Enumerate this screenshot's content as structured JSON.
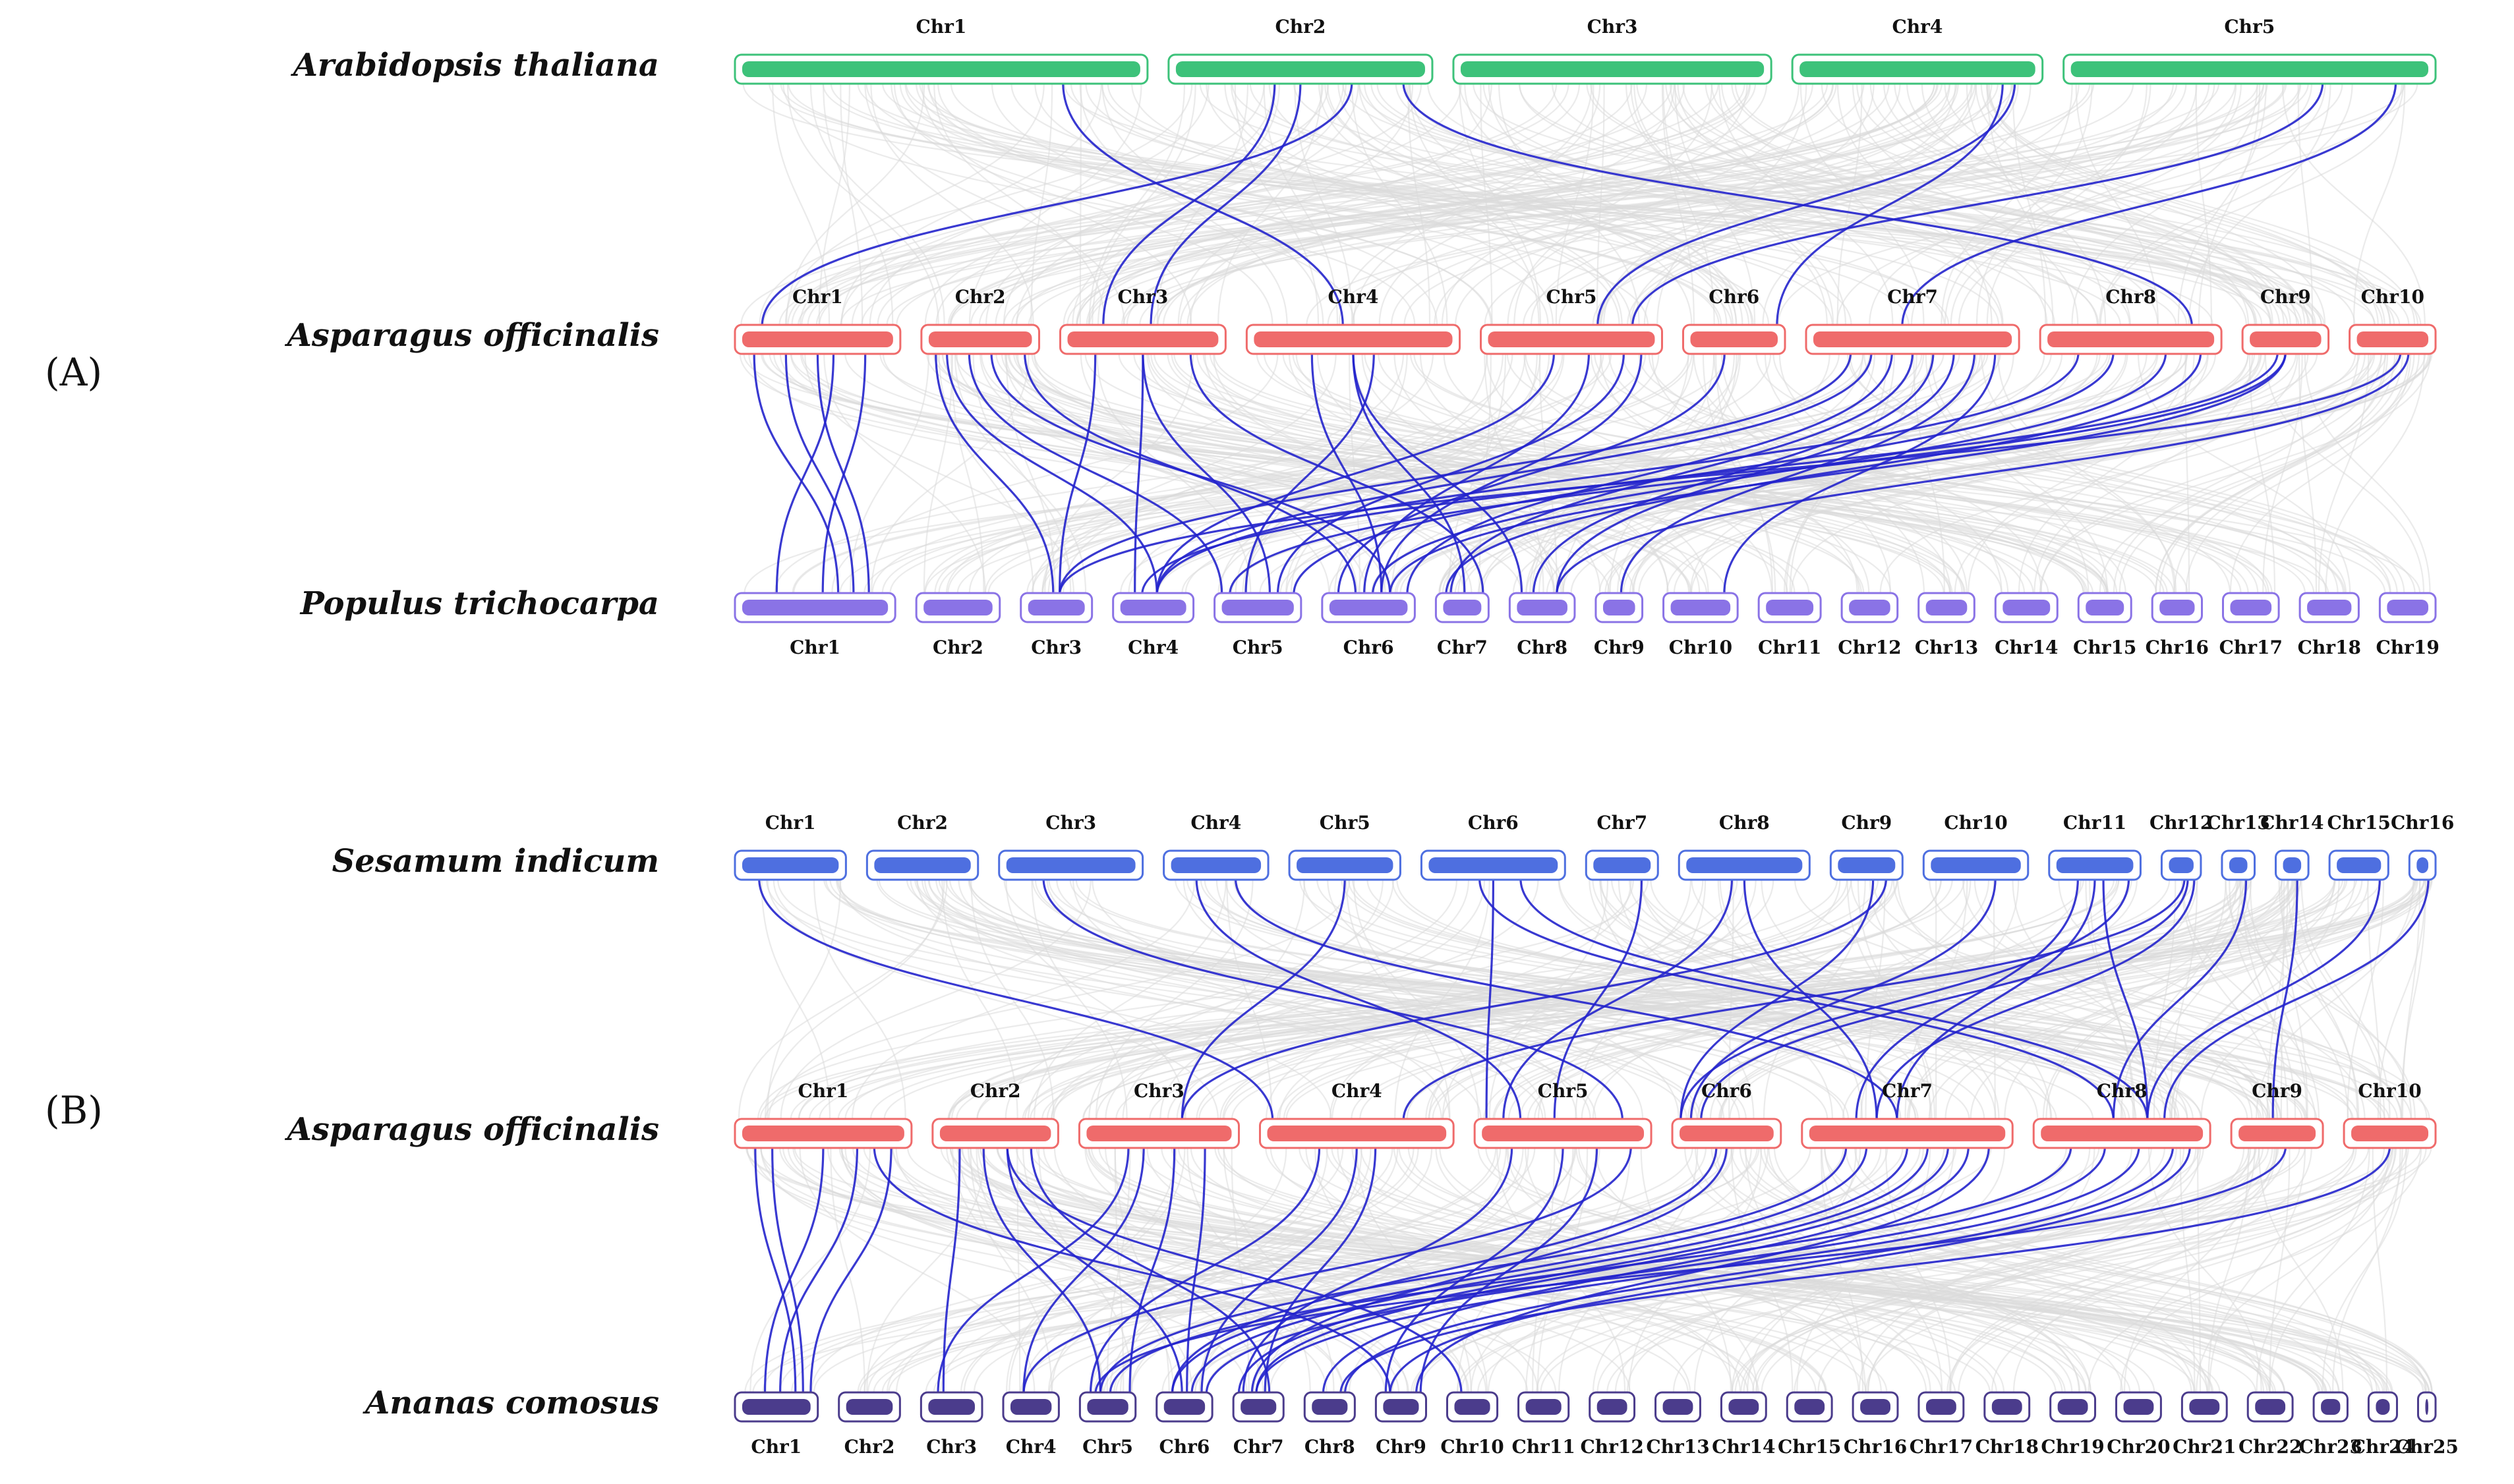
{
  "colors": {
    "arabidopsis": "#3dc27a",
    "asparagus": "#ef6b6b",
    "populus": "#8a73e6",
    "sesamum": "#4e6fe0",
    "ananas": "#4b3c8c",
    "syntenic": "#2424cc",
    "background": "#dadada"
  },
  "panels": [
    {
      "label": "(A)",
      "tracks": [
        {
          "species": "Arabidopsis thaliana",
          "color_key": "arabidopsis",
          "label_pos": "above",
          "chromosomes": [
            "Chr1",
            "Chr2",
            "Chr3",
            "Chr4",
            "Chr5"
          ],
          "sizes": [
            30,
            19,
            23,
            18,
            27
          ]
        },
        {
          "species": "Asparagus officinalis",
          "color_key": "asparagus",
          "label_pos": "above",
          "chromosomes": [
            "Chr1",
            "Chr2",
            "Chr3",
            "Chr4",
            "Chr5",
            "Chr6",
            "Chr7",
            "Chr8",
            "Chr9",
            "Chr10"
          ],
          "sizes": [
            10,
            7,
            10,
            13,
            11,
            6,
            13,
            11,
            5,
            5
          ]
        },
        {
          "species": "Populus trichocarpa",
          "color_key": "populus",
          "label_pos": "below",
          "chromosomes": [
            "Chr1",
            "Chr2",
            "Chr3",
            "Chr4",
            "Chr5",
            "Chr6",
            "Chr7",
            "Chr8",
            "Chr9",
            "Chr10",
            "Chr11",
            "Chr12",
            "Chr13",
            "Chr14",
            "Chr15",
            "Chr16",
            "Chr17",
            "Chr18",
            "Chr19"
          ],
          "sizes": [
            50,
            25,
            21,
            24,
            26,
            28,
            15,
            19,
            13,
            22,
            18,
            16,
            16,
            18,
            15,
            14,
            16,
            17,
            16
          ]
        }
      ],
      "links_upper": [
        [
          1,
          1,
          0,
          0.7
        ],
        [
          1,
          2,
          2,
          0.4
        ],
        [
          1,
          8,
          7,
          0.9
        ],
        [
          3,
          6,
          4,
          0.9
        ],
        [
          1,
          5,
          2,
          0.5
        ],
        [
          4,
          4,
          6,
          0.9
        ],
        [
          4,
          8,
          4,
          0.7
        ],
        [
          3,
          9,
          5,
          0.85
        ],
        [
          0,
          4,
          3,
          0.8
        ]
      ],
      "links_lower": [
        [
          0,
          16,
          0,
          0.1
        ],
        [
          0,
          17,
          0,
          0.3
        ],
        [
          0,
          18,
          0,
          0.5
        ],
        [
          0,
          2,
          0,
          0.6
        ],
        [
          0,
          5,
          0,
          0.8
        ],
        [
          1,
          14,
          2,
          0.1
        ],
        [
          1,
          15,
          3,
          0.2
        ],
        [
          1,
          10,
          4,
          0.4
        ],
        [
          1,
          17,
          5,
          0.6
        ],
        [
          1,
          3,
          5,
          0.9
        ],
        [
          2,
          5,
          2,
          0.2
        ],
        [
          2,
          12,
          3,
          0.5
        ],
        [
          2,
          16,
          4,
          0.5
        ],
        [
          2,
          9,
          6,
          0.8
        ],
        [
          3,
          16,
          5,
          0.3
        ],
        [
          3,
          5,
          6,
          0.5
        ],
        [
          3,
          1,
          7,
          0.5
        ],
        [
          4,
          5,
          3,
          0.4
        ],
        [
          4,
          4,
          5,
          0.6
        ],
        [
          4,
          17,
          4,
          0.8
        ],
        [
          4,
          6,
          5,
          0.9
        ],
        [
          5,
          11,
          5,
          0.4
        ],
        [
          6,
          5,
          2,
          0.2
        ],
        [
          6,
          5,
          3,
          0.3
        ],
        [
          6,
          9,
          5,
          0.4
        ],
        [
          6,
          12,
          6,
          0.5
        ],
        [
          6,
          3,
          7,
          0.6
        ],
        [
          6,
          17,
          7,
          0.7
        ],
        [
          6,
          5,
          8,
          0.8
        ],
        [
          6,
          18,
          9,
          0.9
        ],
        [
          7,
          5,
          3,
          0.2
        ],
        [
          7,
          9,
          4,
          0.4
        ],
        [
          7,
          15,
          5,
          0.7
        ],
        [
          7,
          11,
          6,
          0.9
        ],
        [
          8,
          13,
          3,
          0.4
        ],
        [
          8,
          1,
          4,
          0.5
        ],
        [
          8,
          17,
          5,
          0.5
        ],
        [
          9,
          15,
          2,
          0.6
        ],
        [
          9,
          17,
          7,
          0.7
        ],
        [
          3,
          13,
          4,
          0.6
        ]
      ]
    },
    {
      "label": "(B)",
      "tracks": [
        {
          "species": "Sesamum indicum",
          "color_key": "sesamum",
          "label_pos": "above",
          "chromosomes": [
            "Chr1",
            "Chr2",
            "Chr3",
            "Chr4",
            "Chr5",
            "Chr6",
            "Chr7",
            "Chr8",
            "Chr9",
            "Chr10",
            "Chr11",
            "Chr12",
            "Chr13",
            "Chr14",
            "Chr15",
            "Chr16"
          ],
          "sizes": [
            16,
            16,
            21,
            15,
            16,
            21,
            10,
            19,
            10,
            15,
            13,
            5,
            4,
            4,
            8,
            3
          ]
        },
        {
          "species": "Asparagus officinalis",
          "color_key": "asparagus",
          "label_pos": "above",
          "chromosomes": [
            "Chr1",
            "Chr2",
            "Chr3",
            "Chr4",
            "Chr5",
            "Chr6",
            "Chr7",
            "Chr8",
            "Chr9",
            "Chr10"
          ],
          "sizes": [
            10,
            7,
            9,
            11,
            10,
            6,
            12,
            10,
            5,
            5
          ]
        },
        {
          "species": "Ananas comosus",
          "color_key": "ananas",
          "label_pos": "below",
          "chromosomes": [
            "Chr1",
            "Chr2",
            "Chr3",
            "Chr4",
            "Chr5",
            "Chr6",
            "Chr7",
            "Chr8",
            "Chr9",
            "Chr10",
            "Chr11",
            "Chr12",
            "Chr13",
            "Chr14",
            "Chr15",
            "Chr16",
            "Chr17",
            "Chr18",
            "Chr19",
            "Chr20",
            "Chr21",
            "Chr22",
            "Chr23",
            "Chr24",
            "Chr25"
          ],
          "sizes": [
            14,
            10,
            10,
            9,
            9,
            9,
            8,
            8,
            8,
            8,
            8,
            7,
            7,
            7,
            7,
            7,
            7,
            7,
            7,
            7,
            7,
            7,
            5,
            4,
            2
          ]
        }
      ],
      "links_upper": [
        [
          0,
          0,
          3,
          0.2
        ],
        [
          3,
          2,
          4,
          0.3
        ],
        [
          3,
          4,
          6,
          0.7
        ],
        [
          4,
          6,
          2,
          0.5
        ],
        [
          5,
          0,
          4,
          0.5
        ],
        [
          5,
          4,
          7,
          0.4
        ],
        [
          5,
          6,
          7,
          0.7
        ],
        [
          6,
          4,
          4,
          0.8
        ],
        [
          7,
          1,
          4,
          0.4
        ],
        [
          7,
          3,
          6,
          0.5
        ],
        [
          8,
          0,
          5,
          0.6
        ],
        [
          8,
          6,
          2,
          0.8
        ],
        [
          9,
          1,
          5,
          0.7
        ],
        [
          10,
          0,
          5,
          0.9
        ],
        [
          10,
          2,
          6,
          0.3
        ],
        [
          10,
          4,
          6,
          0.5
        ],
        [
          10,
          6,
          7,
          0.6
        ],
        [
          11,
          2,
          5,
          0.7
        ],
        [
          11,
          3,
          6,
          0.9
        ],
        [
          12,
          4,
          7,
          0.8
        ],
        [
          13,
          4,
          8,
          0.7
        ],
        [
          14,
          6,
          7,
          0.9
        ],
        [
          15,
          7,
          7,
          0.8
        ],
        [
          2,
          8,
          4,
          0.3
        ],
        [
          11,
          7,
          3,
          0.6
        ]
      ],
      "links_lower": [
        [
          0,
          17,
          0,
          0.1
        ],
        [
          0,
          18,
          0,
          0.2
        ],
        [
          0,
          3,
          0,
          0.5
        ],
        [
          0,
          15,
          0,
          0.7
        ],
        [
          0,
          9,
          0,
          0.9
        ],
        [
          1,
          3,
          2,
          0.2
        ],
        [
          1,
          13,
          4,
          0.4
        ],
        [
          1,
          14,
          5,
          0.6
        ],
        [
          1,
          7,
          6,
          0.8
        ],
        [
          2,
          12,
          2,
          0.3
        ],
        [
          2,
          3,
          3,
          0.4
        ],
        [
          2,
          19,
          4,
          0.6
        ],
        [
          2,
          15,
          5,
          0.8
        ],
        [
          3,
          11,
          4,
          0.3
        ],
        [
          3,
          6,
          6,
          0.6
        ],
        [
          4,
          1,
          6,
          0.2
        ],
        [
          4,
          11,
          8,
          0.5
        ],
        [
          4,
          19,
          8,
          0.7
        ],
        [
          4,
          3,
          3,
          0.9
        ],
        [
          5,
          12,
          5,
          0.4
        ],
        [
          6,
          3,
          4,
          0.2
        ],
        [
          6,
          2,
          5,
          0.3
        ],
        [
          6,
          16,
          5,
          0.5
        ],
        [
          6,
          10,
          6,
          0.6
        ],
        [
          6,
          14,
          6,
          0.7
        ],
        [
          6,
          3,
          7,
          0.8
        ],
        [
          6,
          18,
          8,
          0.9
        ],
        [
          7,
          5,
          4,
          0.2
        ],
        [
          7,
          9,
          5,
          0.4
        ],
        [
          7,
          14,
          6,
          0.6
        ],
        [
          7,
          18,
          7,
          0.8
        ],
        [
          7,
          22,
          8,
          0.9
        ],
        [
          8,
          22,
          4,
          0.6
        ],
        [
          9,
          17,
          7,
          0.5
        ],
        [
          1,
          22,
          9,
          0.6
        ],
        [
          0,
          22,
          8,
          0.8
        ],
        [
          3,
          8,
          5,
          0.5
        ],
        [
          5,
          13,
          6,
          0.5
        ]
      ]
    }
  ]
}
